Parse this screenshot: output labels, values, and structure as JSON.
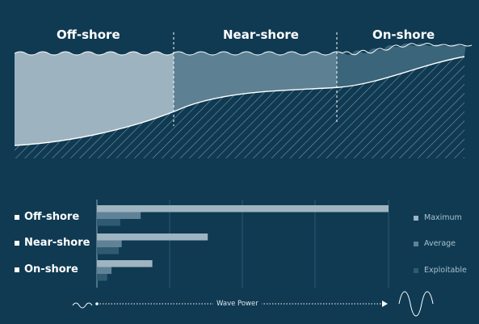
{
  "zones": [
    {
      "key": "offshore",
      "label": "Off-shore"
    },
    {
      "key": "nearshore",
      "label": "Near-shore"
    },
    {
      "key": "onshore",
      "label": "On-shore"
    }
  ],
  "legend": [
    {
      "label": "Maximum",
      "color": "#9fb4c1"
    },
    {
      "label": "Average",
      "color": "#5f8296"
    },
    {
      "label": "Exploitable",
      "color": "#2f5b72"
    }
  ],
  "colors": {
    "background": "#0f3a52",
    "offshore_fill": "#9eb3c0",
    "nearshore_fill": "#5d8093",
    "onshore_fill": "#3a657b",
    "seabed_hatch": "#7f9db0"
  },
  "chart_data": {
    "type": "bar",
    "categories": [
      "Off-shore",
      "Near-shore",
      "On-shore"
    ],
    "series": [
      {
        "name": "Maximum",
        "values": [
          100,
          38,
          19
        ]
      },
      {
        "name": "Average",
        "values": [
          15,
          8.5,
          5
        ]
      },
      {
        "name": "Exploitable",
        "values": [
          8,
          7.5,
          3.5
        ]
      }
    ],
    "xlabel": "Wave Power",
    "xlim": [
      0,
      100
    ],
    "grid": true,
    "legend_position": "right"
  }
}
